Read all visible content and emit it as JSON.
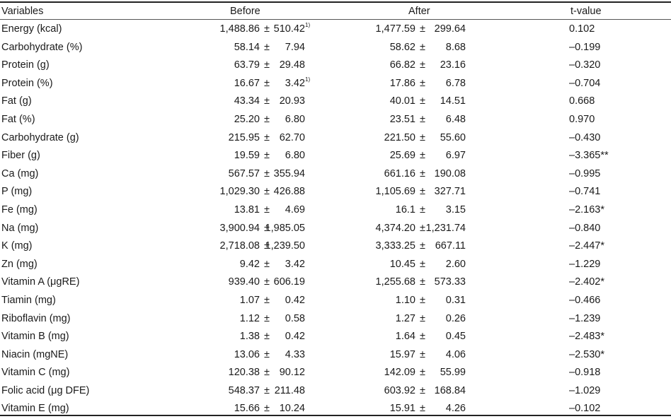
{
  "headers": {
    "variables": "Variables",
    "before": "Before",
    "after": "After",
    "t_value": "t-value"
  },
  "pm": "±",
  "rows": [
    {
      "variable": "Energy (kcal)",
      "before_mean": "1,488.86",
      "before_sd": "510.42",
      "before_note": "1)",
      "after_mean": "1,477.59",
      "after_sd": "299.64",
      "t": "0.102"
    },
    {
      "variable": "Carbohydrate (%)",
      "before_mean": "58.14",
      "before_sd": "7.94",
      "before_note": "",
      "after_mean": "58.62",
      "after_sd": "8.68",
      "t": "–0.199"
    },
    {
      "variable": "Protein (g)",
      "before_mean": "63.79",
      "before_sd": "29.48",
      "before_note": "",
      "after_mean": "66.82",
      "after_sd": "23.16",
      "t": "–0.320"
    },
    {
      "variable": "Protein (%)",
      "before_mean": "16.67",
      "before_sd": "3.42",
      "before_note": "1)",
      "after_mean": "17.86",
      "after_sd": "6.78",
      "t": "–0.704"
    },
    {
      "variable": "Fat (g)",
      "before_mean": "43.34",
      "before_sd": "20.93",
      "before_note": "",
      "after_mean": "40.01",
      "after_sd": "14.51",
      "t": "0.668"
    },
    {
      "variable": "Fat (%)",
      "before_mean": "25.20",
      "before_sd": "6.80",
      "before_note": "",
      "after_mean": "23.51",
      "after_sd": "6.48",
      "t": "0.970"
    },
    {
      "variable": "Carbohydrate (g)",
      "before_mean": "215.95",
      "before_sd": "62.70",
      "before_note": "",
      "after_mean": "221.50",
      "after_sd": "55.60",
      "t": "–0.430"
    },
    {
      "variable": "Fiber (g)",
      "before_mean": "19.59",
      "before_sd": "6.80",
      "before_note": "",
      "after_mean": "25.69",
      "after_sd": "6.97",
      "t": "–3.365**"
    },
    {
      "variable": "Ca (mg)",
      "before_mean": "567.57",
      "before_sd": "355.94",
      "before_note": "",
      "after_mean": "661.16",
      "after_sd": "190.08",
      "t": "–0.995"
    },
    {
      "variable": "P (mg)",
      "before_mean": "1,029.30",
      "before_sd": "426.88",
      "before_note": "",
      "after_mean": "1,105.69",
      "after_sd": "327.71",
      "t": "–0.741"
    },
    {
      "variable": "Fe (mg)",
      "before_mean": "13.81",
      "before_sd": "4.69",
      "before_note": "",
      "after_mean": "16.1",
      "after_sd": "3.15",
      "t": "–2.163*"
    },
    {
      "variable": "Na (mg)",
      "before_mean": "3,900.94",
      "before_sd": "1,985.05",
      "before_note": "",
      "after_mean": "4,374.20",
      "after_sd": "1,231.74",
      "t": "–0.840"
    },
    {
      "variable": "K (mg)",
      "before_mean": "2,718.08",
      "before_sd": "1,239.50",
      "before_note": "",
      "after_mean": "3,333.25",
      "after_sd": "667.11",
      "t": "–2.447*"
    },
    {
      "variable": "Zn (mg)",
      "before_mean": "9.42",
      "before_sd": "3.42",
      "before_note": "",
      "after_mean": "10.45",
      "after_sd": "2.60",
      "t": "–1.229"
    },
    {
      "variable": "Vitamin A (μgRE)",
      "before_mean": "939.40",
      "before_sd": "606.19",
      "before_note": "",
      "after_mean": "1,255.68",
      "after_sd": "573.33",
      "t": "–2.402*"
    },
    {
      "variable": "Tiamin (mg)",
      "before_mean": "1.07",
      "before_sd": "0.42",
      "before_note": "",
      "after_mean": "1.10",
      "after_sd": "0.31",
      "t": "–0.466"
    },
    {
      "variable": "Riboflavin (mg)",
      "before_mean": "1.12",
      "before_sd": "0.58",
      "before_note": "",
      "after_mean": "1.27",
      "after_sd": "0.26",
      "t": "–1.239"
    },
    {
      "variable": "Vitamin B (mg)",
      "before_mean": "1.38",
      "before_sd": "0.42",
      "before_note": "",
      "after_mean": "1.64",
      "after_sd": "0.45",
      "t": "–2.483*"
    },
    {
      "variable": "Niacin (mgNE)",
      "before_mean": "13.06",
      "before_sd": "4.33",
      "before_note": "",
      "after_mean": "15.97",
      "after_sd": "4.06",
      "t": "–2.530*"
    },
    {
      "variable": "Vitamin C (mg)",
      "before_mean": "120.38",
      "before_sd": "90.12",
      "before_note": "",
      "after_mean": "142.09",
      "after_sd": "55.99",
      "t": "–0.918"
    },
    {
      "variable": "Folic acid (μg DFE)",
      "before_mean": "548.37",
      "before_sd": "211.48",
      "before_note": "",
      "after_mean": "603.92",
      "after_sd": "168.84",
      "t": "–1.029"
    },
    {
      "variable": "Vitamin E (mg)",
      "before_mean": "15.66",
      "before_sd": "10.24",
      "before_note": "",
      "after_mean": "15.91",
      "after_sd": "4.26",
      "t": "–0.102"
    }
  ]
}
